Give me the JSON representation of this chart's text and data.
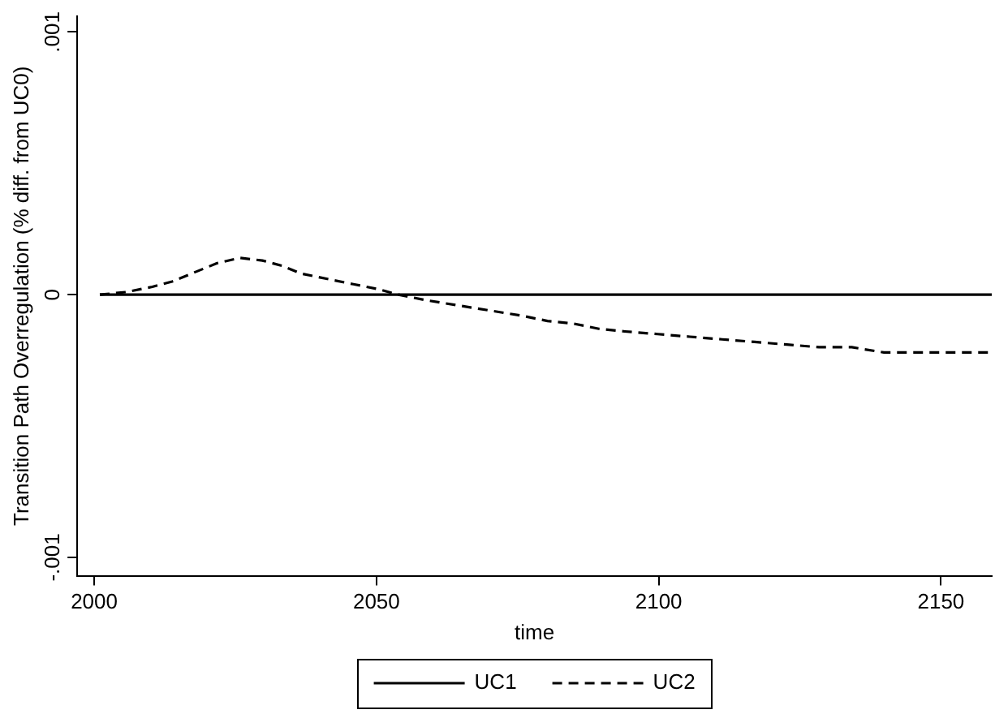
{
  "chart_data": {
    "type": "line",
    "xlabel": "time",
    "ylabel": "Transition Path Overregulation (% diff. from UC0)",
    "xlim": [
      1997,
      2159
    ],
    "xticks": [
      2000,
      2050,
      2100,
      2150
    ],
    "ylim": [
      -0.00107,
      0.00106
    ],
    "yticks": [
      {
        "value": -0.001,
        "label": "-.001"
      },
      0,
      {
        "value": 0.001,
        "label": ".001"
      }
    ],
    "grid": false,
    "legend": "bottom",
    "marker": "none",
    "series": [
      {
        "name": "UC1",
        "color": "#000000",
        "line_style": "solid",
        "x": [
          2001,
          2159
        ],
        "values": [
          0,
          0
        ]
      },
      {
        "name": "UC2",
        "color": "#000000",
        "line_style": "dashed",
        "x": [
          2001,
          2005.7,
          2010.3,
          2013.8,
          2017.2,
          2021.8,
          2025.8,
          2029.8,
          2033.3,
          2036.7,
          2041.3,
          2045.9,
          2050.5,
          2053.9,
          2058.5,
          2064.2,
          2070,
          2075.7,
          2080.3,
          2084.9,
          2089.4,
          2094,
          2099.8,
          2105.5,
          2111.2,
          2117,
          2122.7,
          2128.4,
          2134.2,
          2139.9,
          2145.6,
          2151.4,
          2158.8
        ],
        "values": [
          0,
          1e-05,
          3e-05,
          5e-05,
          8e-05,
          0.00012,
          0.00014,
          0.00013,
          0.00011,
          8e-05,
          6e-05,
          4e-05,
          2e-05,
          0,
          -2e-05,
          -4e-05,
          -6e-05,
          -8e-05,
          -0.0001,
          -0.00011,
          -0.00013,
          -0.00014,
          -0.00015,
          -0.00016,
          -0.00017,
          -0.00018,
          -0.00019,
          -0.0002,
          -0.0002,
          -0.00022,
          -0.00022,
          -0.00022,
          -0.00022
        ]
      }
    ]
  }
}
